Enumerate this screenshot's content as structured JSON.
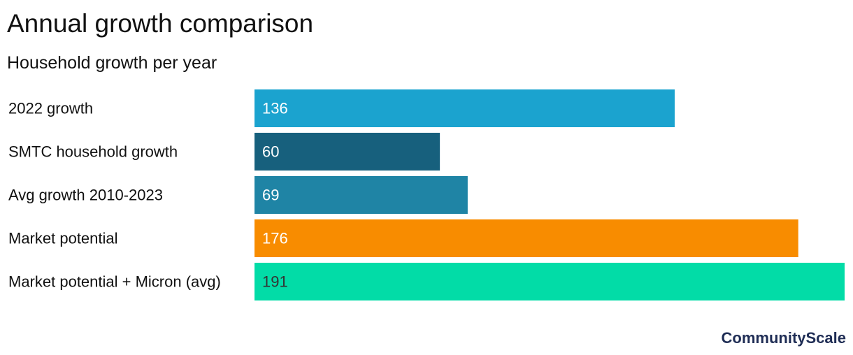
{
  "chart_data": {
    "type": "bar",
    "orientation": "horizontal",
    "title": "Annual growth comparison",
    "subtitle": "Household growth per year",
    "categories": [
      "2022 growth",
      "SMTC household growth",
      "Avg growth 2010-2023",
      "Market potential",
      "Market potential + Micron (avg)"
    ],
    "values": [
      136,
      60,
      69,
      176,
      191
    ],
    "value_labels": [
      "136",
      "60",
      "69",
      "176",
      "191"
    ],
    "bar_colors": [
      "#1ba3cf",
      "#17607d",
      "#1f84a5",
      "#f88c00",
      "#02dca7"
    ],
    "value_label_colors": [
      "#ffffff",
      "#ffffff",
      "#ffffff",
      "#ffffff",
      "#333333"
    ],
    "xlim": [
      0,
      191
    ],
    "grid": false,
    "legend": "none"
  },
  "brand": {
    "name": "CommunityScale",
    "color": "#1f2d55"
  }
}
